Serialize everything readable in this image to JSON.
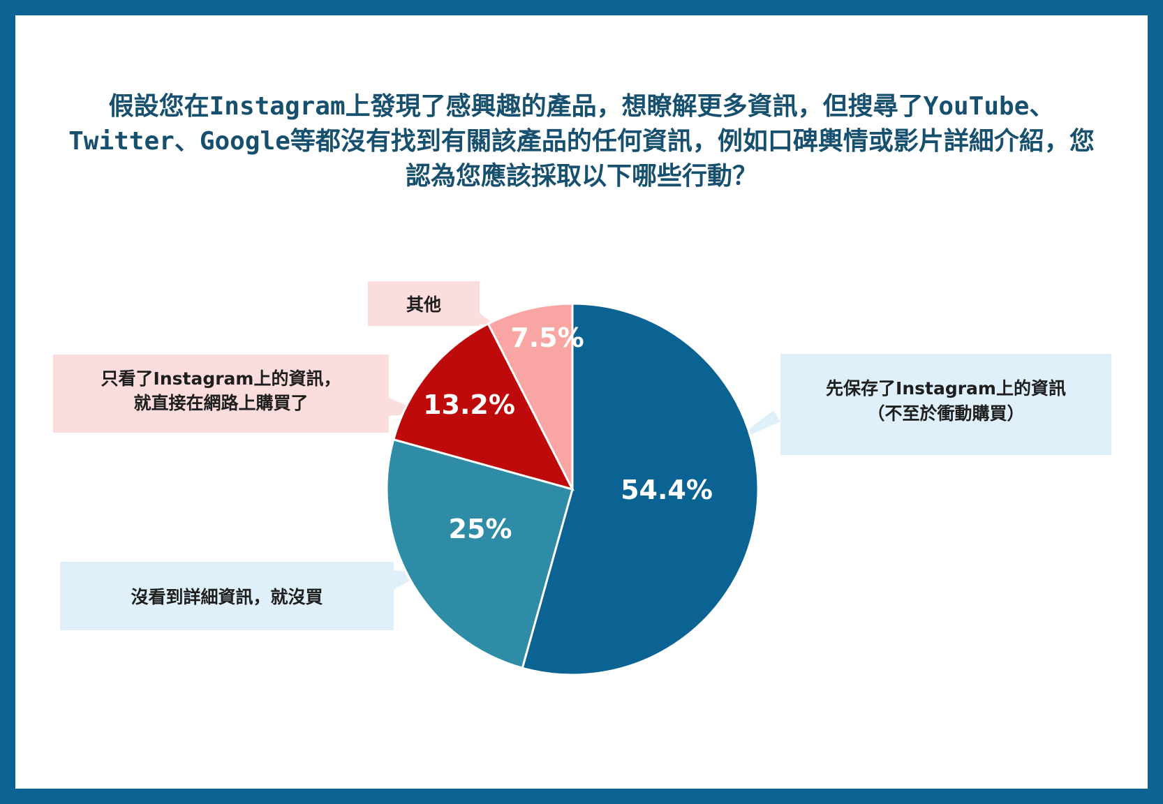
{
  "title": "假設您在Instagram上發現了感興趣的產品，想瞭解更多資訊，但搜尋了YouTube、Twitter、Google等都沒有找到有關該產品的任何資訊，例如口碑輿情或影片詳細介紹，您認為您應該採取以下哪些行動？",
  "colors": {
    "frame": "#0b6394",
    "title": "#17506f"
  },
  "chart_data": {
    "type": "pie",
    "title": "假設您在Instagram上發現了感興趣的產品，想瞭解更多資訊，但搜尋了YouTube、Twitter、Google等都沒有找到有關該產品的任何資訊，例如口碑輿情或影片詳細介紹，您認為您應該採取以下哪些行動？",
    "start": "12 o'clock",
    "direction": "clockwise",
    "legend": "callouts",
    "slices": [
      {
        "label_lines": [
          "先保存了Instagram上的資訊",
          "（不至於衝動購買）"
        ],
        "value": 54.4,
        "value_label": "54.4%",
        "color": "#0b6394",
        "callout_color": "#dff0fb"
      },
      {
        "label_lines": [
          "沒看到詳細資訊，就沒買"
        ],
        "value": 25,
        "value_label": "25%",
        "color": "#2e8ca6",
        "callout_color": "#dff0fb"
      },
      {
        "label_lines": [
          "只看了Instagram上的資訊，",
          "就直接在網路上購買了"
        ],
        "value": 13.2,
        "value_label": "13.2%",
        "color": "#be0a0a",
        "callout_color": "#fadddc"
      },
      {
        "label_lines": [
          "其他"
        ],
        "value": 7.5,
        "value_label": "7.5%",
        "color": "#f9a5a4",
        "callout_color": "#fadddc"
      }
    ]
  }
}
